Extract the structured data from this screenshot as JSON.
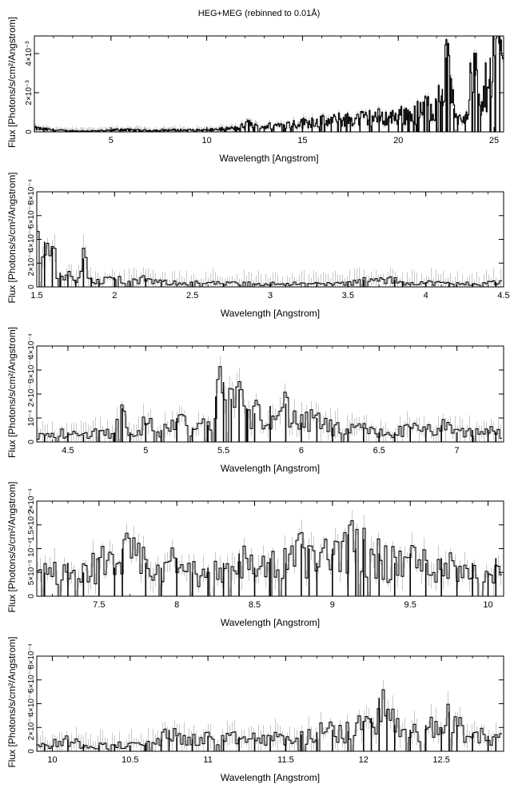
{
  "title": "HEG+MEG (rebinned to 0.01Å)",
  "colors": {
    "line": "#000000",
    "error_bar": "#bbbbbb",
    "axis": "#000000"
  },
  "chart_data": [
    {
      "type": "line",
      "xlabel": "Wavelength [Angstrom]",
      "ylabel": "Flux [Photons/s/cm²/Angstrom]",
      "xlim": [
        1.0,
        25.5
      ],
      "ylim": [
        0,
        0.0049
      ],
      "xticks": [
        5,
        10,
        15,
        20,
        25
      ],
      "xticklabels": [
        "5",
        "10",
        "15",
        "20",
        "25"
      ],
      "yticks": [
        0,
        0.002,
        0.004
      ],
      "yticklabels": [
        "0",
        "2×10⁻³",
        "4×10⁻³"
      ],
      "series": [
        {
          "x": [
            1.0,
            1.5,
            2.0,
            3.0,
            4.0,
            5.0,
            5.5,
            6.0,
            7.0,
            8.0,
            9.0,
            10.0,
            11.0,
            11.5,
            12.0,
            12.2,
            12.5,
            13.0,
            13.5,
            14.0,
            14.5,
            15.0,
            15.5,
            16.0,
            16.5,
            17.0,
            17.5,
            18.0,
            18.5,
            19.0,
            19.5,
            20.0,
            20.5,
            21.0,
            21.5,
            22.0,
            22.3,
            22.5,
            22.7,
            22.9,
            23.1,
            23.5,
            24.0,
            24.3,
            24.8,
            25.3
          ],
          "y": [
            0.0002,
            0.00015,
            0.0001,
            5e-05,
            5e-05,
            8e-05,
            0.00015,
            0.0001,
            8e-05,
            0.0001,
            0.0001,
            0.0001,
            0.00018,
            0.0002,
            0.00035,
            0.0005,
            0.0003,
            0.0003,
            0.00035,
            0.0004,
            0.00045,
            0.0005,
            0.0006,
            0.0006,
            0.0006,
            0.0007,
            0.0007,
            0.00075,
            0.0008,
            0.00085,
            0.0008,
            0.0009,
            0.001,
            0.0011,
            0.0014,
            0.0016,
            0.0022,
            0.0038,
            0.0029,
            0.0012,
            0.0008,
            0.0009,
            0.0038,
            0.0009,
            0.0038,
            0.0049
          ]
        }
      ]
    },
    {
      "type": "line",
      "xlabel": "Wavelength [Angstrom]",
      "ylabel": "Flux [Photons/s/cm²/Angstrom]",
      "xlim": [
        1.5,
        4.5
      ],
      "ylim": [
        0,
        0.0008
      ],
      "xticks": [
        1.5,
        2,
        2.5,
        3,
        3.5,
        4,
        4.5
      ],
      "xticklabels": [
        "1.5",
        "2",
        "2.5",
        "3",
        "3.5",
        "4",
        "4.5"
      ],
      "yticks": [
        0,
        0.0002,
        0.0004,
        0.0006,
        0.0008
      ],
      "yticklabels": [
        "0",
        "2×10⁻⁴",
        "4×10⁻⁴",
        "6×10⁻⁴",
        "8×10⁻⁴"
      ],
      "series": [
        {
          "x": [
            1.55,
            1.6,
            1.65,
            1.7,
            1.75,
            1.8,
            1.85,
            1.9,
            2.0,
            2.1,
            2.2,
            2.3,
            2.5,
            2.7,
            3.0,
            3.3,
            3.5,
            3.6,
            3.8,
            3.85,
            4.0,
            4.15,
            4.3,
            4.45
          ],
          "y": [
            0.00038,
            0.00033,
            0.00012,
            0.0001,
            6e-05,
            0.00024,
            8e-05,
            5e-05,
            8e-05,
            4e-05,
            7e-05,
            4e-05,
            4e-05,
            3e-05,
            3e-05,
            3e-05,
            3e-05,
            6e-05,
            6e-05,
            4e-05,
            4e-05,
            3e-05,
            3e-05,
            4e-05
          ]
        }
      ]
    },
    {
      "type": "line",
      "xlabel": "Wavelength [Angstrom]",
      "ylabel": "Flux [Photons/s/cm²/Angstrom]",
      "xlim": [
        4.3,
        7.3
      ],
      "ylim": [
        0,
        0.0004
      ],
      "xticks": [
        4.5,
        5,
        5.5,
        6,
        6.5,
        7
      ],
      "xticklabels": [
        "4.5",
        "5",
        "5.5",
        "6",
        "6.5",
        "7"
      ],
      "yticks": [
        0,
        0.0001,
        0.0002,
        0.0003,
        0.0004
      ],
      "yticklabels": [
        "0",
        "10⁻⁴",
        "2×10⁻⁴",
        "3×10⁻⁴",
        "4×10⁻⁴"
      ],
      "series": [
        {
          "x": [
            4.35,
            4.5,
            4.6,
            4.7,
            4.8,
            4.85,
            4.9,
            5.0,
            5.1,
            5.2,
            5.3,
            5.4,
            5.45,
            5.5,
            5.55,
            5.6,
            5.65,
            5.7,
            5.8,
            5.9,
            6.0,
            6.1,
            6.2,
            6.3,
            6.4,
            6.5,
            6.6,
            6.7,
            6.8,
            6.9,
            7.0,
            7.1,
            7.2,
            7.25
          ],
          "y": [
            3e-05,
            4e-05,
            3e-05,
            5e-05,
            4e-05,
            0.00014,
            4e-05,
            8e-05,
            5e-05,
            0.0001,
            6e-05,
            7e-05,
            0.00019,
            0.00025,
            0.00018,
            0.00022,
            0.00014,
            0.00012,
            0.00015,
            0.00016,
            8e-05,
            0.0001,
            6e-05,
            5e-05,
            6e-05,
            4e-05,
            4e-05,
            6e-05,
            5e-05,
            7e-05,
            4e-05,
            5e-05,
            5e-05,
            4e-05
          ]
        }
      ]
    },
    {
      "type": "line",
      "xlabel": "Wavelength [Angstrom]",
      "ylabel": "Flux [Photons/s/cm²/Angstrom]",
      "xlim": [
        7.1,
        10.1
      ],
      "ylim": [
        0,
        0.0002
      ],
      "xticks": [
        7.5,
        8,
        8.5,
        9,
        9.5,
        10
      ],
      "xticklabels": [
        "7.5",
        "8",
        "8.5",
        "9",
        "9.5",
        "10"
      ],
      "yticks": [
        0,
        5e-05,
        0.0001,
        0.00015,
        0.0002
      ],
      "yticklabels": [
        "0",
        "5×10⁻⁵",
        "10⁻⁴",
        "1.5×10⁻⁴",
        "2×10⁻⁴"
      ],
      "series": [
        {
          "x": [
            7.15,
            7.3,
            7.4,
            7.5,
            7.6,
            7.65,
            7.8,
            7.9,
            8.0,
            8.1,
            8.2,
            8.3,
            8.4,
            8.5,
            8.6,
            8.7,
            8.8,
            8.85,
            8.9,
            9.0,
            9.1,
            9.15,
            9.2,
            9.3,
            9.4,
            9.5,
            9.6,
            9.7,
            9.8,
            9.9,
            10.0,
            10.05
          ],
          "y": [
            5e-05,
            7e-05,
            5e-05,
            8e-05,
            6e-05,
            0.0001,
            7e-05,
            6e-05,
            8e-05,
            5e-05,
            6e-05,
            7e-05,
            9e-05,
            6e-05,
            8e-05,
            7e-05,
            0.00011,
            0.0001,
            7e-05,
            0.0001,
            0.00013,
            0.0001,
            0.00012,
            9e-05,
            7e-05,
            9e-05,
            7e-05,
            8e-05,
            6e-05,
            7e-05,
            5e-05,
            8e-05
          ]
        }
      ]
    },
    {
      "type": "line",
      "xlabel": "Wavelength [Angstrom]",
      "ylabel": "Flux [Photons/s/cm²/Angstrom]",
      "xlim": [
        9.9,
        12.9
      ],
      "ylim": [
        0,
        0.0008
      ],
      "xticks": [
        10,
        10.5,
        11,
        11.5,
        12,
        12.5
      ],
      "xticklabels": [
        "10",
        "10.5",
        "11",
        "11.5",
        "12",
        "12.5"
      ],
      "yticks": [
        0,
        0.0002,
        0.0004,
        0.0006,
        0.0008
      ],
      "yticklabels": [
        "0",
        "2×10⁻⁴",
        "4×10⁻⁴",
        "6×10⁻⁴",
        "8×10⁻⁴"
      ],
      "series": [
        {
          "x": [
            9.95,
            10.1,
            10.2,
            10.3,
            10.4,
            10.5,
            10.6,
            10.7,
            10.75,
            10.8,
            10.9,
            11.0,
            11.1,
            11.2,
            11.3,
            11.4,
            11.5,
            11.6,
            11.7,
            11.8,
            11.9,
            12.0,
            12.05,
            12.1,
            12.15,
            12.2,
            12.3,
            12.4,
            12.5,
            12.55,
            12.6,
            12.7,
            12.8,
            12.85
          ],
          "y": [
            5e-05,
            0.0001,
            6e-05,
            5e-05,
            6e-05,
            5e-05,
            7e-05,
            0.0001,
            0.00018,
            0.00012,
            0.0001,
            0.00013,
            0.0001,
            0.00012,
            0.00011,
            0.00012,
            0.00011,
            0.00014,
            0.00016,
            0.00018,
            0.00017,
            0.00025,
            0.00028,
            0.00045,
            0.00035,
            0.00022,
            0.00018,
            0.00022,
            0.00019,
            0.00033,
            0.00022,
            0.00015,
            0.00013,
            0.00012
          ]
        }
      ]
    }
  ]
}
